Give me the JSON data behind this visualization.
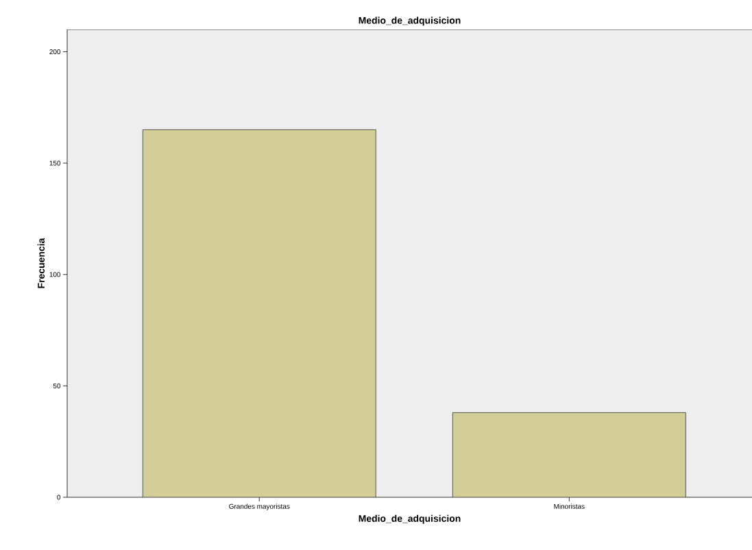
{
  "chart_data": {
    "type": "bar",
    "title": "Medio_de_adquisicion",
    "xlabel": "Medio_de_adquisicion",
    "ylabel": "Frecuencia",
    "categories": [
      "Grandes mayoristas",
      "Minoristas"
    ],
    "values": [
      165,
      38
    ],
    "color": "#d3cd98",
    "ylim": [
      0,
      210
    ],
    "yticks": [
      0,
      50,
      100,
      150,
      200
    ]
  }
}
